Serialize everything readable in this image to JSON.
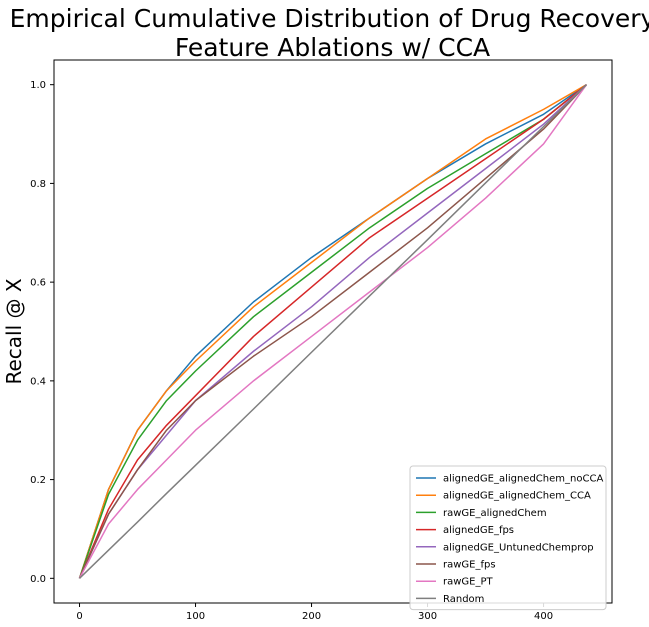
{
  "chart_data": {
    "type": "line",
    "title_lines": [
      "Empirical Cumulative Distribution of Drug Recovery",
      "Feature Ablations w/ CCA"
    ],
    "xlabel": "",
    "ylabel": "Recall @ X",
    "xlim": [
      -22,
      459
    ],
    "ylim": [
      -0.05,
      1.05
    ],
    "x_ticks": [
      0,
      100,
      200,
      300,
      400
    ],
    "y_ticks": [
      0.0,
      0.2,
      0.4,
      0.6,
      0.8,
      1.0
    ],
    "x_tick_labels": [
      "0",
      "100",
      "200",
      "300",
      "400"
    ],
    "y_tick_labels": [
      "0.0",
      "0.2",
      "0.4",
      "0.6",
      "0.8",
      "1.0"
    ],
    "grid": false,
    "legend_position": "lower-right",
    "x": [
      0,
      25,
      50,
      75,
      100,
      150,
      200,
      250,
      300,
      350,
      400,
      437
    ],
    "series": [
      {
        "name": "alignedGE_alignedChem_noCCA",
        "color": "#1f77b4",
        "values": [
          0.0,
          0.18,
          0.3,
          0.38,
          0.45,
          0.56,
          0.65,
          0.73,
          0.81,
          0.88,
          0.94,
          1.0
        ]
      },
      {
        "name": "alignedGE_alignedChem_CCA",
        "color": "#ff7f0e",
        "values": [
          0.0,
          0.18,
          0.3,
          0.38,
          0.44,
          0.55,
          0.64,
          0.73,
          0.81,
          0.89,
          0.95,
          1.0
        ]
      },
      {
        "name": "rawGE_alignedChem",
        "color": "#2ca02c",
        "values": [
          0.0,
          0.17,
          0.28,
          0.36,
          0.42,
          0.53,
          0.62,
          0.71,
          0.79,
          0.86,
          0.93,
          1.0
        ]
      },
      {
        "name": "alignedGE_fps",
        "color": "#d62728",
        "values": [
          0.0,
          0.14,
          0.24,
          0.31,
          0.37,
          0.49,
          0.59,
          0.69,
          0.77,
          0.85,
          0.93,
          1.0
        ]
      },
      {
        "name": "alignedGE_UntunedChemprop",
        "color": "#9467bd",
        "values": [
          0.0,
          0.13,
          0.22,
          0.29,
          0.36,
          0.46,
          0.55,
          0.65,
          0.74,
          0.83,
          0.92,
          1.0
        ]
      },
      {
        "name": "rawGE_fps",
        "color": "#8c564b",
        "values": [
          0.0,
          0.13,
          0.22,
          0.3,
          0.36,
          0.45,
          0.53,
          0.62,
          0.71,
          0.81,
          0.91,
          1.0
        ]
      },
      {
        "name": "rawGE_PT",
        "color": "#e377c2",
        "values": [
          0.0,
          0.11,
          0.18,
          0.24,
          0.3,
          0.4,
          0.49,
          0.58,
          0.67,
          0.77,
          0.88,
          1.0
        ]
      },
      {
        "name": "Random",
        "color": "#7f7f7f",
        "values": [
          0.0,
          0.057,
          0.114,
          0.172,
          0.229,
          0.343,
          0.458,
          0.572,
          0.686,
          0.801,
          0.915,
          1.0
        ]
      }
    ]
  }
}
